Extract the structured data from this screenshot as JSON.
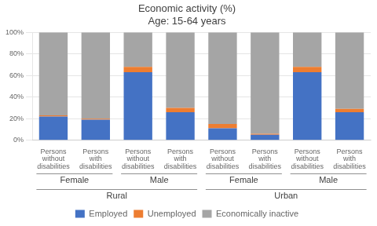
{
  "chart_data": {
    "type": "bar",
    "title": "Economic activity (%)\nAge: 15-64 years",
    "categories": [
      "Persons\nwithout\ndisabilities",
      "Persons\nwith\ndisabilities",
      "Persons\nwithout\ndisabilities",
      "Persons\nwith\ndisabilities",
      "Persons\nwithout\ndisabilities",
      "Persons\nwith\ndisabilities",
      "Persons\nwithout\ndisabilities",
      "Persons\nwith\ndisabilities"
    ],
    "group_labels": [
      "Female",
      "Male",
      "Female",
      "Male"
    ],
    "region_labels": [
      "Rural",
      "Urban"
    ],
    "series": [
      {
        "name": "Employed",
        "color": "#4472c4",
        "values": [
          22,
          19,
          63,
          26,
          11,
          5,
          63,
          26
        ]
      },
      {
        "name": "Unemployed",
        "color": "#ed7d31",
        "values": [
          1,
          1,
          5,
          4,
          4,
          1,
          5,
          3
        ]
      },
      {
        "name": "Economically inactive",
        "color": "#a5a5a5",
        "values": [
          77,
          80,
          32,
          70,
          85,
          94,
          32,
          71
        ]
      }
    ],
    "stacked": true,
    "ylim": [
      0,
      100
    ],
    "yticks": [
      {
        "value": 0,
        "label": "0%"
      },
      {
        "value": 20,
        "label": "20%"
      },
      {
        "value": 40,
        "label": "40%"
      },
      {
        "value": 60,
        "label": "60%"
      },
      {
        "value": 80,
        "label": "80%"
      },
      {
        "value": 100,
        "label": "100%"
      }
    ],
    "grid": true,
    "legend": "bottom"
  }
}
